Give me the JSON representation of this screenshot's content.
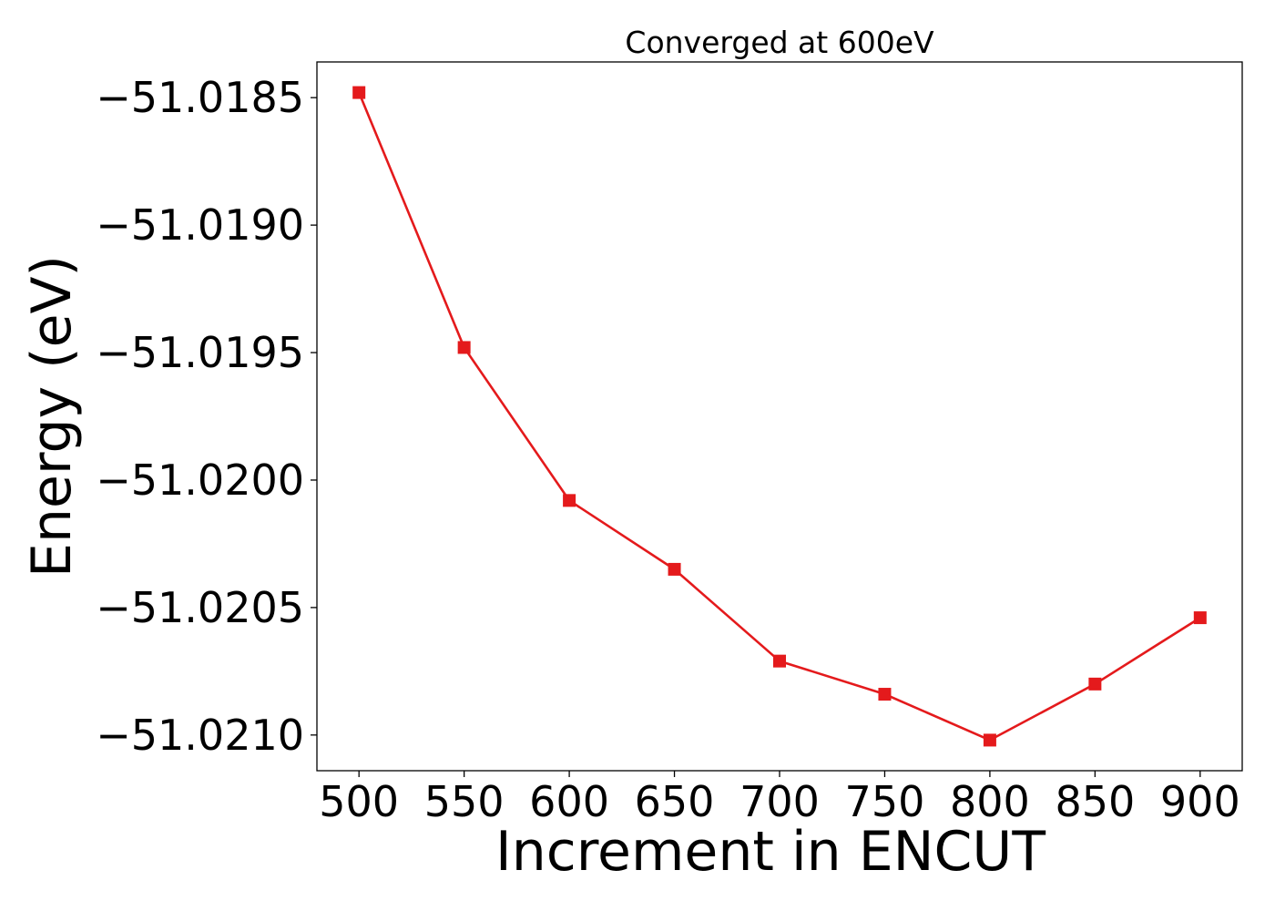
{
  "chart_data": {
    "type": "line",
    "title": "Converged at 600eV",
    "xlabel": "Increment in ENCUT",
    "ylabel": "Energy (eV)",
    "x": [
      500,
      550,
      600,
      650,
      700,
      750,
      800,
      850,
      900
    ],
    "series": [
      {
        "values": [
          -51.01848,
          -51.01948,
          -51.02008,
          -51.02035,
          -51.02071,
          -51.02084,
          -51.02102,
          -51.0208,
          -51.02054
        ],
        "color": "#e41a1c",
        "marker": "square"
      }
    ],
    "xticks": [
      500,
      550,
      600,
      650,
      700,
      750,
      800,
      850,
      900
    ],
    "xtick_labels": [
      "500",
      "550",
      "600",
      "650",
      "700",
      "750",
      "800",
      "850",
      "900"
    ],
    "yticks": [
      -51.0185,
      -51.019,
      -51.0195,
      -51.02,
      -51.0205,
      -51.021
    ],
    "ytick_labels": [
      "−51.0185",
      "−51.0190",
      "−51.0195",
      "−51.0200",
      "−51.0205",
      "−51.0210"
    ],
    "xlim": [
      480,
      920
    ],
    "ylim": [
      -51.02114,
      -51.01836
    ],
    "grid": false,
    "legend": "none"
  }
}
